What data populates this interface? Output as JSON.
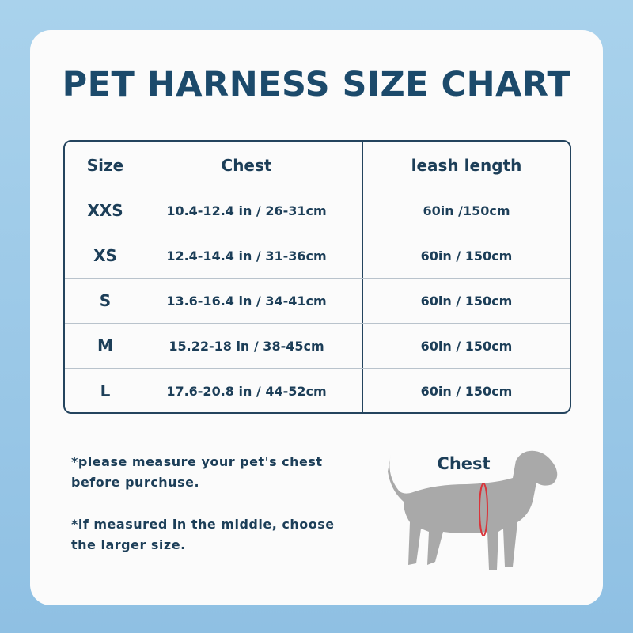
{
  "header": {
    "title": "PET HARNESS SIZE CHART"
  },
  "table": {
    "columns": [
      "Size",
      "Chest",
      "leash length"
    ],
    "rows": [
      [
        "XXS",
        "10.4-12.4 in / 26-31cm",
        "60in /150cm"
      ],
      [
        "XS",
        "12.4-14.4 in / 31-36cm",
        "60in / 150cm"
      ],
      [
        "S",
        "13.6-16.4 in / 34-41cm",
        "60in / 150cm"
      ],
      [
        "M",
        "15.22-18 in / 38-45cm",
        "60in / 150cm"
      ],
      [
        "L",
        "17.6-20.8 in / 44-52cm",
        "60in / 150cm"
      ]
    ]
  },
  "notes": [
    "*please measure your pet's chest before purchuse.",
    "*if measured in the middle, choose the larger size."
  ],
  "illustration": {
    "label": "Chest"
  }
}
